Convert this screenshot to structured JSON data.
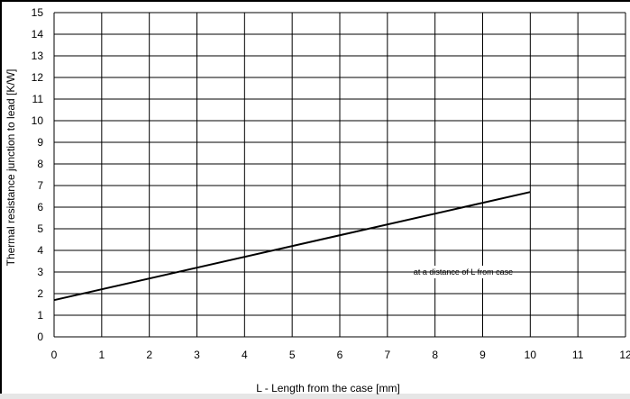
{
  "chart_data": {
    "type": "line",
    "title": "",
    "xlabel": "L - Length from the case  [mm]",
    "ylabel": "Thermal resistance junction to lead  [K/W]",
    "xlim": [
      0,
      12
    ],
    "ylim": [
      0,
      15
    ],
    "x_ticks": [
      "0",
      "1",
      "2",
      "3",
      "4",
      "5",
      "6",
      "7",
      "8",
      "9",
      "10",
      "11",
      "12"
    ],
    "y_ticks": [
      "0",
      "1",
      "2",
      "3",
      "4",
      "5",
      "6",
      "7",
      "8",
      "9",
      "10",
      "11",
      "12",
      "13",
      "14",
      "15"
    ],
    "grid": true,
    "series": [
      {
        "x": [
          0,
          10
        ],
        "y": [
          1.7,
          6.7
        ]
      }
    ],
    "annotation": "at a distance of L from case"
  }
}
